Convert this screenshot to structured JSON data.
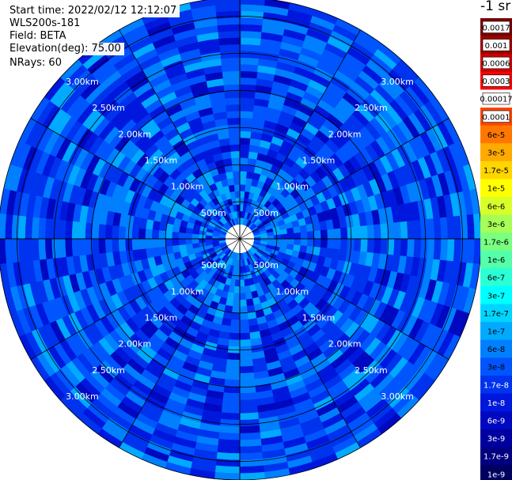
{
  "header": {
    "start_time": "Start time: 2022/02/12 12:12:07",
    "instrument": "WLS200s-181",
    "field": "Field: BETA",
    "elevation": "Elevation(deg): 75.00",
    "nrays": "NRays: 60"
  },
  "colorbar": {
    "units_label": "-1 sr",
    "labels": [
      "0.0017",
      "0.001",
      "0.0006",
      "0.0003",
      "0.00017",
      "0.0001",
      "6e-5",
      "3e-5",
      "1.7e-5",
      "1e-5",
      "6e-6",
      "3e-6",
      "1.7e-6",
      "1e-6",
      "6e-7",
      "3e-7",
      "1.7e-7",
      "1e-7",
      "6e-8",
      "3e-8",
      "1.7e-8",
      "1e-8",
      "6e-9",
      "3e-9",
      "1.7e-9",
      "1e-9"
    ],
    "colors": [
      "#7a0000",
      "#a00000",
      "#cc0000",
      "#ff0000",
      "#ffffff",
      "#ff4400",
      "#ff7700",
      "#ffaa00",
      "#ffd500",
      "#ffff00",
      "#d8ff2a",
      "#a6ff55",
      "#7aff80",
      "#55ffaa",
      "#2affd5",
      "#00ffff",
      "#00d5ff",
      "#00aaff",
      "#0080ff",
      "#0055ff",
      "#0033ee",
      "#0018dd",
      "#0008c0",
      "#0000a0",
      "#000080",
      "#000060"
    ],
    "text_colors": [
      "#000000",
      "#ffffff",
      "#ffffff",
      "#ffffff",
      "#000000",
      "#000000",
      "#000000",
      "#000000",
      "#000000",
      "#000000",
      "#000000",
      "#000000",
      "#000000",
      "#000000",
      "#000000",
      "#000000",
      "#000000",
      "#000000",
      "#000000",
      "#000000",
      "#ffffff",
      "#ffffff",
      "#ffffff",
      "#ffffff",
      "#ffffff",
      "#ffffff"
    ]
  },
  "chart_data": {
    "type": "heatmap",
    "projection": "polar (PPI)",
    "field": "BETA",
    "nrays": 60,
    "range_rings": [
      "500m",
      "1.00km",
      "1.50km",
      "2.00km",
      "2.50km",
      "3.00km"
    ],
    "range_ring_values_km": [
      0.5,
      1.0,
      1.5,
      2.0,
      2.5,
      3.0
    ],
    "max_range_km": 3.25,
    "spokes_deg": [
      0,
      30,
      60,
      90,
      120,
      150,
      180,
      210,
      240,
      270,
      300,
      330
    ],
    "label_diagonals_deg": [
      45,
      135,
      225,
      315
    ],
    "value_range": [
      "1e-9",
      "0.0017"
    ],
    "typical_values": [
      "1.7e-9",
      "1e-8"
    ],
    "grid": true
  }
}
